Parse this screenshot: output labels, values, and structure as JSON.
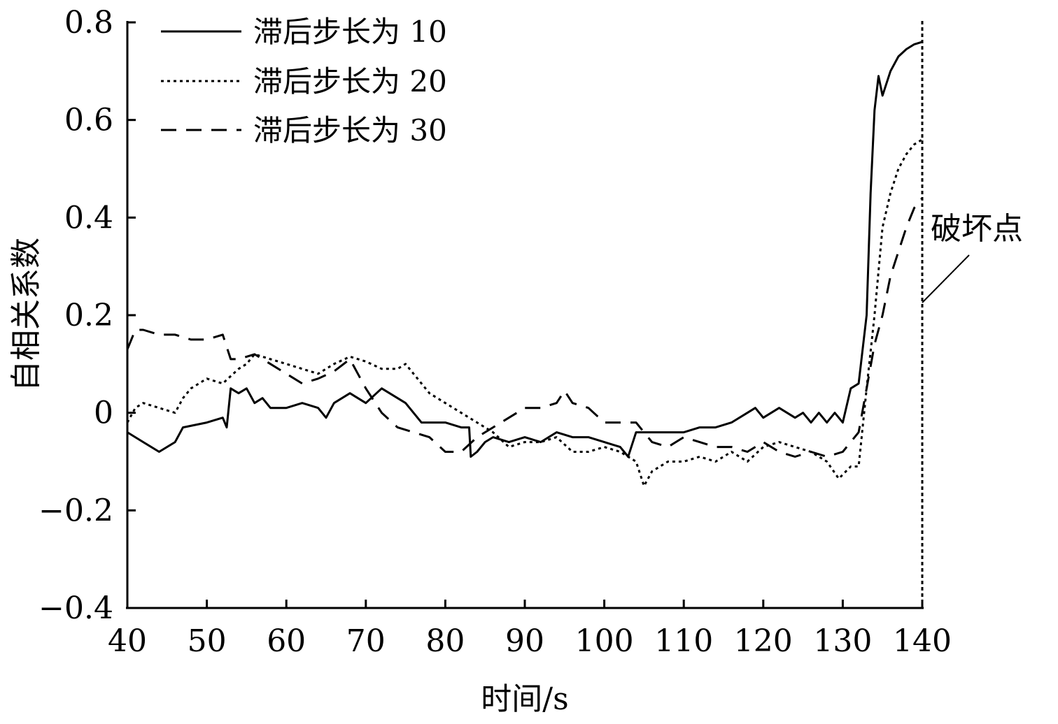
{
  "chart_data": {
    "type": "line",
    "title": "",
    "xlabel": "时间/s",
    "ylabel": "自相关系数",
    "xlim": [
      40,
      140
    ],
    "ylim": [
      -0.4,
      0.8
    ],
    "xticks": [
      "40",
      "50",
      "60",
      "70",
      "80",
      "90",
      "100",
      "110",
      "120",
      "130",
      "140"
    ],
    "yticks": [
      "−0.4",
      "−0.2",
      "0",
      "0.2",
      "0.4",
      "0.6",
      "0.8"
    ],
    "grid": false,
    "legend_position": "top-left",
    "annotation": {
      "text": "破坏点",
      "x": 140
    },
    "series": [
      {
        "name": "滞后步长为 10",
        "style": "solid",
        "x": [
          40,
          42,
          44,
          46,
          47,
          50,
          52,
          52.5,
          53,
          54,
          55,
          56,
          57,
          58,
          60,
          62,
          64,
          65,
          66,
          68,
          70,
          72,
          74,
          75,
          76,
          77,
          78,
          80,
          82,
          83,
          83.2,
          84,
          85,
          86,
          88,
          90,
          92,
          94,
          96,
          98,
          100,
          102,
          103,
          104,
          106,
          108,
          110,
          112,
          114,
          116,
          118,
          119,
          120,
          122,
          124,
          125,
          126,
          127,
          128,
          129,
          130,
          131,
          132,
          133,
          133.5,
          134,
          134.5,
          135,
          136,
          137,
          138,
          139,
          140
        ],
        "y": [
          -0.04,
          -0.06,
          -0.08,
          -0.06,
          -0.03,
          -0.02,
          -0.01,
          -0.03,
          0.05,
          0.04,
          0.05,
          0.02,
          0.03,
          0.01,
          0.01,
          0.02,
          0.01,
          -0.01,
          0.02,
          0.04,
          0.02,
          0.05,
          0.03,
          0.02,
          0.0,
          -0.02,
          -0.02,
          -0.02,
          -0.03,
          -0.03,
          -0.09,
          -0.08,
          -0.06,
          -0.05,
          -0.06,
          -0.05,
          -0.06,
          -0.04,
          -0.05,
          -0.05,
          -0.06,
          -0.07,
          -0.09,
          -0.04,
          -0.04,
          -0.04,
          -0.04,
          -0.03,
          -0.03,
          -0.02,
          0.0,
          0.01,
          -0.01,
          0.01,
          -0.01,
          0.0,
          -0.02,
          0.0,
          -0.02,
          0.0,
          -0.02,
          0.05,
          0.06,
          0.2,
          0.45,
          0.62,
          0.69,
          0.65,
          0.7,
          0.73,
          0.745,
          0.755,
          0.76
        ]
      },
      {
        "name": "滞后步长为 20",
        "style": "dotted",
        "x": [
          40,
          41,
          42,
          44,
          46,
          47,
          48,
          50,
          52,
          54,
          55,
          56,
          58,
          60,
          62,
          64,
          66,
          68,
          70,
          72,
          74,
          75,
          76,
          78,
          80,
          82,
          84,
          86,
          88,
          90,
          92,
          94,
          96,
          98,
          100,
          102,
          104,
          105,
          106,
          108,
          110,
          112,
          114,
          116,
          118,
          120,
          122,
          124,
          126,
          128,
          129.5,
          131,
          132,
          133,
          134,
          135,
          136,
          137,
          138,
          139,
          140
        ],
        "y": [
          -0.02,
          0.01,
          0.02,
          0.01,
          0.0,
          0.03,
          0.05,
          0.07,
          0.06,
          0.09,
          0.1,
          0.12,
          0.11,
          0.1,
          0.09,
          0.08,
          0.1,
          0.115,
          0.105,
          0.09,
          0.09,
          0.1,
          0.08,
          0.04,
          0.02,
          0.0,
          -0.02,
          -0.04,
          -0.07,
          -0.06,
          -0.06,
          -0.05,
          -0.08,
          -0.08,
          -0.07,
          -0.08,
          -0.1,
          -0.15,
          -0.12,
          -0.1,
          -0.1,
          -0.09,
          -0.1,
          -0.08,
          -0.1,
          -0.07,
          -0.06,
          -0.07,
          -0.08,
          -0.1,
          -0.135,
          -0.11,
          -0.11,
          0.05,
          0.2,
          0.38,
          0.45,
          0.5,
          0.53,
          0.55,
          0.56
        ]
      },
      {
        "name": "滞后步长为 30",
        "style": "dashed",
        "x": [
          40,
          41,
          42,
          44,
          46,
          48,
          50,
          52,
          53,
          54,
          56,
          58,
          60,
          62,
          64,
          66,
          68,
          70,
          72,
          74,
          76,
          78,
          80,
          82,
          84,
          86,
          88,
          90,
          92,
          94,
          95,
          96,
          98,
          100,
          102,
          104,
          106,
          108,
          110,
          112,
          114,
          116,
          118,
          120,
          122,
          124,
          126,
          128,
          130,
          132,
          133,
          134,
          135,
          136,
          137,
          138,
          139,
          140
        ],
        "y": [
          0.13,
          0.17,
          0.17,
          0.16,
          0.16,
          0.15,
          0.15,
          0.16,
          0.11,
          0.11,
          0.12,
          0.1,
          0.08,
          0.06,
          0.07,
          0.085,
          0.11,
          0.05,
          0.0,
          -0.03,
          -0.04,
          -0.05,
          -0.08,
          -0.08,
          -0.05,
          -0.03,
          -0.01,
          0.01,
          0.01,
          0.02,
          0.045,
          0.02,
          0.01,
          -0.02,
          -0.02,
          -0.02,
          -0.06,
          -0.07,
          -0.05,
          -0.06,
          -0.07,
          -0.07,
          -0.08,
          -0.06,
          -0.08,
          -0.09,
          -0.08,
          -0.09,
          -0.08,
          -0.04,
          0.05,
          0.14,
          0.2,
          0.28,
          0.33,
          0.38,
          0.42,
          0.44
        ]
      }
    ]
  }
}
